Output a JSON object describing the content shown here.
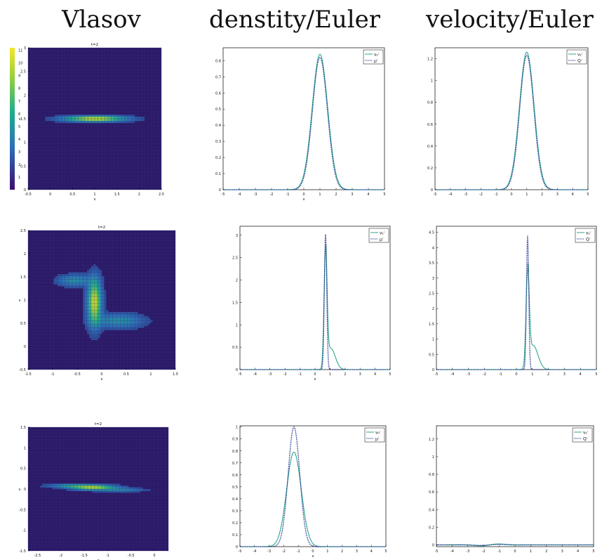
{
  "column_titles": [
    "Vlasov",
    "denstity/Euler",
    "velocity/Euler"
  ],
  "colors": {
    "numeric": "#2aa88e",
    "exact": "#1b2a8a",
    "heat_bg": "#2b1a66",
    "axis": "#000000"
  },
  "colorbar": {
    "ticks": [
      "1",
      "2",
      "3",
      "4",
      "5",
      "6",
      "7",
      "8",
      "9",
      "10",
      "11"
    ]
  },
  "chart_data": [
    {
      "type": "heatmap",
      "row": 0,
      "col": 0,
      "title": "t=2",
      "xlabel": "x",
      "ylabel": "v",
      "xlim": [
        -0.5,
        2.5
      ],
      "ylim": [
        0,
        3
      ],
      "xticks": [
        "-0.5",
        "0",
        "0.5",
        "1",
        "1.5",
        "2",
        "2.5"
      ],
      "yticks": [
        "0",
        "0.5",
        "1",
        "1.5",
        "2",
        "2.5",
        "3"
      ],
      "blobs": [
        {
          "x": 1.0,
          "v": 1.5,
          "sx": 0.45,
          "sv": 0.04,
          "peak": 1.0
        }
      ]
    },
    {
      "type": "line",
      "row": 0,
      "col": 1,
      "xlabel": "x",
      "xlim": [
        -5,
        5
      ],
      "ylim": [
        0,
        0.88
      ],
      "xticks": [
        "-5",
        "-4",
        "-3",
        "-2",
        "-1",
        "0",
        "1",
        "2",
        "3",
        "4",
        "5"
      ],
      "yticks": [
        "0",
        "0.1",
        "0.2",
        "0.3",
        "0.4",
        "0.5",
        "0.6",
        "0.7",
        "0.8"
      ],
      "series": [
        {
          "name": "ν₁ⁱ",
          "style": "solid",
          "peak": 0.84,
          "center": 1.0,
          "width": 0.48
        },
        {
          "name": "μⁱ",
          "style": "dotted",
          "peak": 0.82,
          "center": 1.0,
          "width": 0.46
        }
      ]
    },
    {
      "type": "line",
      "row": 0,
      "col": 2,
      "xlim": [
        -5,
        5
      ],
      "ylim": [
        0,
        1.3
      ],
      "xticks": [
        "-5",
        "-4",
        "-3",
        "-2",
        "-1",
        "0",
        "1",
        "2",
        "3",
        "4",
        "5"
      ],
      "yticks": [
        "0",
        "0.2",
        "0.4",
        "0.6",
        "0.8",
        "1",
        "1.2"
      ],
      "series": [
        {
          "name": "ν₁ⁱ",
          "style": "solid",
          "peak": 1.26,
          "center": 1.0,
          "width": 0.48
        },
        {
          "name": "Qⁱ",
          "style": "dotted",
          "peak": 1.23,
          "center": 1.0,
          "width": 0.46
        }
      ]
    },
    {
      "type": "heatmap",
      "row": 1,
      "col": 0,
      "title": "t=2",
      "xlabel": "x",
      "ylabel": "v",
      "xlim": [
        -1.5,
        1.5
      ],
      "ylim": [
        -0.5,
        2.5
      ],
      "xticks": [
        "-1.5",
        "-1",
        "-0.5",
        "0",
        "0.5",
        "1",
        "1.5"
      ],
      "yticks": [
        "-0.5",
        "0",
        "0.5",
        "1",
        "1.5",
        "2",
        "2.5"
      ],
      "blobs": [
        {
          "x": -0.15,
          "v": 0.95,
          "sx": 0.09,
          "sv": 0.32,
          "peak": 1.0
        },
        {
          "x": -0.55,
          "v": 1.42,
          "sx": 0.22,
          "sv": 0.08,
          "peak": 0.35
        },
        {
          "x": 0.35,
          "v": 0.55,
          "sx": 0.32,
          "sv": 0.1,
          "peak": 0.35
        }
      ]
    },
    {
      "type": "line",
      "row": 1,
      "col": 1,
      "xlabel": "x",
      "xlim": [
        -5,
        5
      ],
      "ylim": [
        0,
        3.2
      ],
      "xticks": [
        "-5",
        "-4",
        "-3",
        "-2",
        "-1",
        "0",
        "1",
        "2",
        "3",
        "4",
        "5"
      ],
      "yticks": [
        "0",
        "0.5",
        "1",
        "1.5",
        "2",
        "2.5",
        "3"
      ],
      "series": [
        {
          "name": "ν₁ⁱ",
          "style": "solid",
          "peak": 2.62,
          "center": 0.7,
          "width": 0.1,
          "tail": 0.18
        },
        {
          "name": "μⁱ",
          "style": "dotted",
          "peak": 3.02,
          "center": 0.7,
          "width": 0.08,
          "tail": 0.0
        }
      ]
    },
    {
      "type": "line",
      "row": 1,
      "col": 2,
      "xlim": [
        -5,
        5
      ],
      "ylim": [
        0,
        4.7
      ],
      "xticks": [
        "-5",
        "-4",
        "-3",
        "-2",
        "-1",
        "0",
        "1",
        "2",
        "3",
        "4",
        "5"
      ],
      "yticks": [
        "0",
        "0.5",
        "1",
        "1.5",
        "2",
        "2.5",
        "3",
        "3.5",
        "4",
        "4.5"
      ],
      "series": [
        {
          "name": "ν₁ⁱ",
          "style": "solid",
          "peak": 3.15,
          "center": 0.7,
          "width": 0.1,
          "tail": 0.25
        },
        {
          "name": "Qⁱ",
          "style": "dotted",
          "peak": 4.4,
          "center": 0.7,
          "width": 0.07,
          "tail": 0.0
        }
      ]
    },
    {
      "type": "heatmap",
      "row": 2,
      "col": 0,
      "title": "t=2",
      "xlabel": "x",
      "ylabel": "v",
      "xlim": [
        -2.7,
        0.3
      ],
      "ylim": [
        -1.5,
        1.5
      ],
      "xticks": [
        "-2.5",
        "-2",
        "-1.5",
        "-1",
        "-0.5",
        "0"
      ],
      "yticks": [
        "-1.5",
        "-1",
        "-0.5",
        "0",
        "0.5",
        "1",
        "1.5"
      ],
      "blobs": [
        {
          "x": -1.3,
          "v": 0.04,
          "sx": 0.3,
          "sv": 0.04,
          "peak": 0.9
        },
        {
          "x": -1.8,
          "v": 0.08,
          "sx": 0.3,
          "sv": 0.03,
          "peak": 0.4
        },
        {
          "x": -0.7,
          "v": -0.02,
          "sx": 0.3,
          "sv": 0.03,
          "peak": 0.3
        }
      ]
    },
    {
      "type": "line",
      "row": 2,
      "col": 1,
      "xlabel": "x",
      "xlim": [
        -5,
        5
      ],
      "ylim": [
        0,
        1.01
      ],
      "xticks": [
        "-5",
        "-4",
        "-3",
        "-2",
        "-1",
        "0",
        "1",
        "2",
        "3",
        "4",
        "5"
      ],
      "yticks": [
        "0",
        "0.1",
        "0.2",
        "0.3",
        "0.4",
        "0.5",
        "0.6",
        "0.7",
        "0.8",
        "0.9",
        "1"
      ],
      "series": [
        {
          "name": "ν₀ⁱ",
          "style": "solid",
          "peak": 0.79,
          "center": -1.3,
          "width": 0.5
        },
        {
          "name": "μⁱ",
          "style": "dotted",
          "peak": 1.0,
          "center": -1.3,
          "width": 0.4
        }
      ]
    },
    {
      "type": "line",
      "row": 2,
      "col": 2,
      "xlim": [
        -5,
        5
      ],
      "ylim": [
        -0.02,
        1.35
      ],
      "xticks": [
        "-5",
        "-4",
        "-3",
        "-2",
        "-1",
        "0",
        "1",
        "2",
        "3",
        "4",
        "5"
      ],
      "yticks": [
        "0",
        "0.2",
        "0.4",
        "0.6",
        "0.8",
        "1",
        "1.2"
      ],
      "series": [
        {
          "name": "ν₁ⁱ",
          "style": "solid",
          "peak": 0.015,
          "center": -1.6,
          "width": 0.4,
          "wiggle": true
        },
        {
          "name": "Qⁱ",
          "style": "dotted",
          "peak": 0.008,
          "center": -1.6,
          "width": 0.4,
          "wiggle": true
        }
      ]
    }
  ]
}
